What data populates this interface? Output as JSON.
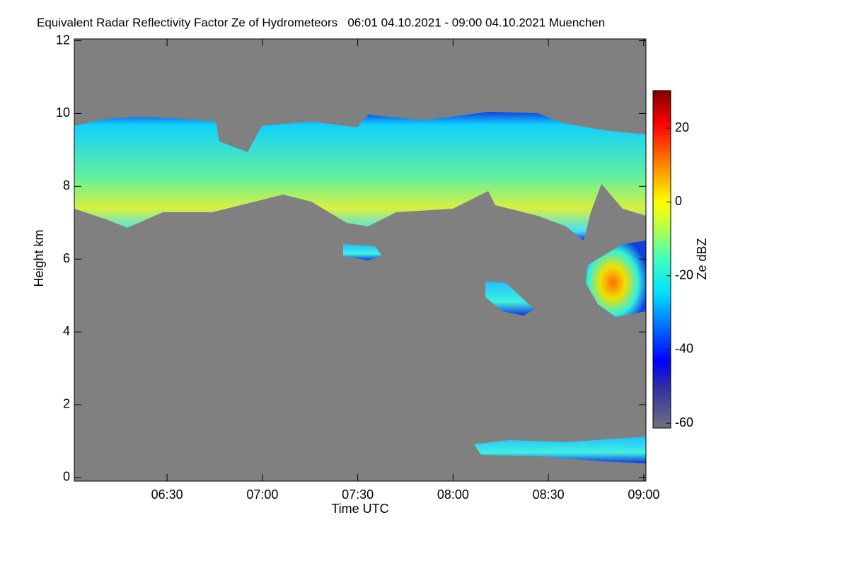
{
  "chart_data": {
    "type": "heatmap",
    "title": "Equivalent Radar Reflectivity Factor Ze of Hydrometeors   06:01 04.10.2021 - 09:00 04.10.2021 Muenchen",
    "x_label": "Time UTC",
    "y_label": "Height km",
    "xlim": [
      360.8,
      540.7
    ],
    "xticks": [
      {
        "value": 390,
        "label": "06:30"
      },
      {
        "value": 420,
        "label": "07:00"
      },
      {
        "value": 450,
        "label": "07:30"
      },
      {
        "value": 480,
        "label": "08:00"
      },
      {
        "value": 510,
        "label": "08:30"
      },
      {
        "value": 540,
        "label": "09:00"
      }
    ],
    "ylim": [
      -0.1,
      12.05
    ],
    "yticks": [
      0,
      2,
      4,
      6,
      8,
      10,
      12
    ],
    "colorbar_label": "Ze dBZ",
    "colorbar_lim": [
      -61.3,
      30.2
    ],
    "colorbar_ticks": [
      20,
      0,
      -20,
      -40,
      -60
    ],
    "background_color": "#808080"
  }
}
